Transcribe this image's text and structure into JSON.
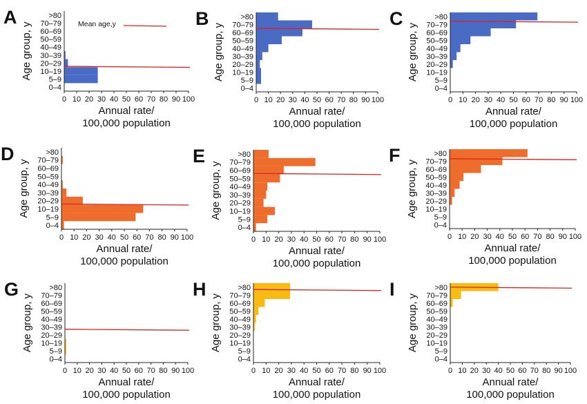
{
  "y_categories": [
    ">80",
    "70–79",
    "60–69",
    "50–59",
    "40–49",
    "30–39",
    "20–29",
    "10–19",
    "5–9",
    "0–4"
  ],
  "x_ticks": [
    0,
    10,
    20,
    30,
    40,
    50,
    60,
    70,
    80,
    90,
    100
  ],
  "ylabel": "Age group, y",
  "xlabel_line1": "Annual rate/",
  "xlabel_line2": "100,000 population",
  "legend_label": "Mean age,y",
  "colors": {
    "blue": "#4a6bc4",
    "orange": "#ee6d2c",
    "yellow": "#f7bc14",
    "mean_line": "#e02020"
  },
  "chart_data": [
    {
      "panel": "A",
      "type": "bar",
      "color": "blue",
      "xlim": [
        0,
        100
      ],
      "categories": [
        ">80",
        "70–79",
        "60–69",
        "50–59",
        "40–49",
        "30–39",
        "20–29",
        "10–19",
        "5–9",
        "0–4"
      ],
      "values": [
        0,
        0,
        0,
        0,
        0,
        1,
        3,
        27,
        27,
        0
      ],
      "mean_age_y": 11,
      "legend": "Mean age,y"
    },
    {
      "panel": "B",
      "type": "bar",
      "color": "blue",
      "xlim": [
        0,
        100
      ],
      "categories": [
        ">80",
        "70–79",
        "60–69",
        "50–59",
        "40–49",
        "30–39",
        "20–29",
        "10–19",
        "5–9",
        "0–4"
      ],
      "values": [
        18,
        46,
        38,
        21,
        10,
        5,
        3,
        4,
        4,
        0
      ],
      "mean_age_y": 60
    },
    {
      "panel": "C",
      "type": "bar",
      "color": "blue",
      "xlim": [
        0,
        100
      ],
      "categories": [
        ">80",
        "70–79",
        "60–69",
        "50–59",
        "40–49",
        "30–39",
        "20–29",
        "10–19",
        "5–9",
        "0–4"
      ],
      "values": [
        69,
        52,
        32,
        16,
        8,
        5,
        2,
        0,
        0,
        0
      ],
      "mean_age_y": 69
    },
    {
      "panel": "D",
      "type": "bar",
      "color": "orange",
      "xlim": [
        0,
        100
      ],
      "categories": [
        ">80",
        "70–79",
        "60–69",
        "50–59",
        "40–49",
        "30–39",
        "20–29",
        "10–19",
        "5–9",
        "0–4"
      ],
      "values": [
        0,
        1,
        0,
        0,
        1,
        4,
        17,
        65,
        59,
        2
      ],
      "mean_age_y": 11
    },
    {
      "panel": "E",
      "type": "bar",
      "color": "orange",
      "xlim": [
        0,
        100
      ],
      "categories": [
        ">80",
        "70–79",
        "60–69",
        "50–59",
        "40–49",
        "30–39",
        "20–29",
        "10–19",
        "5–9",
        "0–4"
      ],
      "values": [
        12,
        49,
        24,
        21,
        11,
        10,
        8,
        17,
        11,
        2
      ],
      "mean_age_y": 51
    },
    {
      "panel": "F",
      "type": "bar",
      "color": "orange",
      "xlim": [
        0,
        100
      ],
      "categories": [
        ">80",
        "70–79",
        "60–69",
        "50–59",
        "40–49",
        "30–39",
        "20–29",
        "10–19",
        "5–9",
        "0–4"
      ],
      "values": [
        62,
        42,
        25,
        11,
        8,
        4,
        2,
        0,
        0,
        0
      ],
      "mean_age_y": 68
    },
    {
      "panel": "G",
      "type": "bar",
      "color": "yellow",
      "xlim": [
        0,
        100
      ],
      "categories": [
        ">80",
        "70–79",
        "60–69",
        "50–59",
        "40–49",
        "30–39",
        "20–29",
        "10–19",
        "5–9",
        "0–4"
      ],
      "values": [
        0,
        0,
        0,
        0,
        0,
        0,
        0,
        1,
        1,
        0
      ],
      "mean_age_y": 22
    },
    {
      "panel": "H",
      "type": "bar",
      "color": "yellow",
      "xlim": [
        0,
        100
      ],
      "categories": [
        ">80",
        "70–79",
        "60–69",
        "50–59",
        "40–49",
        "30–39",
        "20–29",
        "10–19",
        "5–9",
        "0–4"
      ],
      "values": [
        29,
        29,
        9,
        4,
        2,
        1,
        0,
        0,
        0,
        0
      ],
      "mean_age_y": 72
    },
    {
      "panel": "I",
      "type": "bar",
      "color": "yellow",
      "xlim": [
        0,
        100
      ],
      "categories": [
        ">80",
        "70–79",
        "60–69",
        "50–59",
        "40–49",
        "30–39",
        "20–29",
        "10–19",
        "5–9",
        "0–4"
      ],
      "values": [
        40,
        9,
        2,
        0,
        0,
        0,
        0,
        0,
        0,
        0
      ],
      "mean_age_y": 81
    }
  ]
}
